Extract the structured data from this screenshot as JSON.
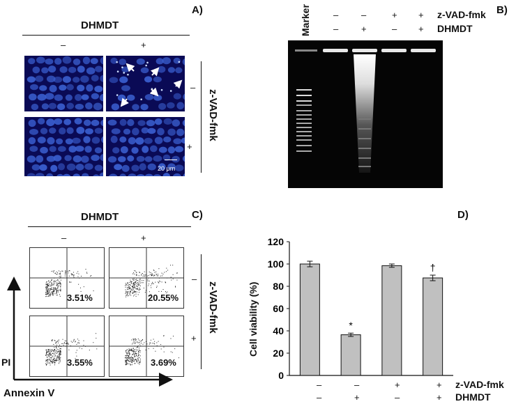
{
  "panel_a": {
    "label": "A)",
    "dhmdt_title": "DHMDT",
    "dhmdt_signs": [
      "–",
      "+"
    ],
    "zvad_title": "z-VAD-fmk",
    "zvad_signs": [
      "–",
      "+"
    ],
    "scale_bar": "20 μm"
  },
  "panel_b": {
    "label": "B)",
    "marker_label": "Marker",
    "row_zvad_label": "z-VAD-fmk",
    "row_dhmdt_label": "DHMDT",
    "zvad_signs": [
      "–",
      "–",
      "+",
      "+"
    ],
    "dhmdt_signs": [
      "–",
      "+",
      "–",
      "+"
    ]
  },
  "panel_c": {
    "label": "C)",
    "dhmdt_title": "DHMDT",
    "dhmdt_signs": [
      "–",
      "+"
    ],
    "zvad_title": "z-VAD-fmk",
    "zvad_signs": [
      "–",
      "+"
    ],
    "y_axis_label": "PI",
    "x_axis_label": "Annexin V",
    "percentages": [
      "3.51%",
      "20.55%",
      "3.55%",
      "3.69%"
    ]
  },
  "panel_d": {
    "label": "D)",
    "row_zvad_label": "z-VAD-fmk",
    "row_dhmdt_label": "DHMDT",
    "zvad_signs": [
      "–",
      "–",
      "+",
      "+"
    ],
    "dhmdt_signs": [
      "–",
      "+",
      "–",
      "+"
    ]
  },
  "chart_data": {
    "type": "bar",
    "categories": [
      "– / –",
      "– / +",
      "+ / –",
      "+ / +"
    ],
    "values": [
      100,
      36.5,
      98.5,
      87.5
    ],
    "errors": [
      2.5,
      1.5,
      1.5,
      2.5
    ],
    "annotations": [
      "",
      "*",
      "",
      "†"
    ],
    "ylabel": "Cell viability (%)",
    "yticks": [
      0,
      20,
      40,
      60,
      80,
      100,
      120
    ],
    "ylim": [
      0,
      120
    ],
    "bar_color": "#c0c0c0",
    "grid": false
  },
  "colors": {
    "micrograph_bg": "#0a0a55",
    "nucleus": "#3a5fd0",
    "gel_bg": "#050505"
  }
}
